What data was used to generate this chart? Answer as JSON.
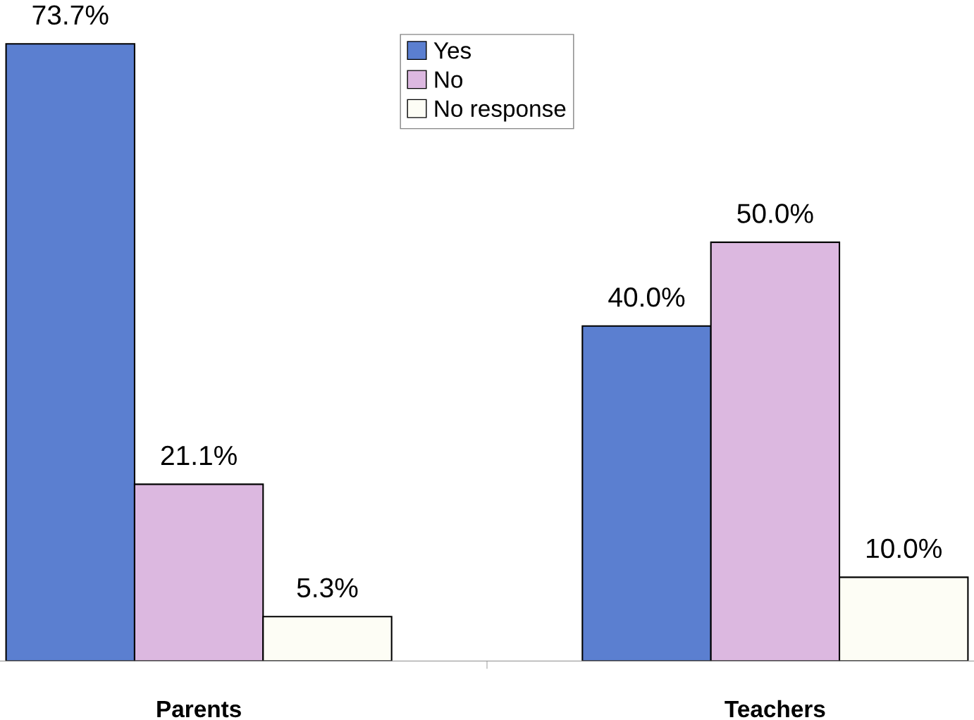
{
  "chart_data": {
    "type": "bar",
    "categories": [
      "Parents",
      "Teachers"
    ],
    "series": [
      {
        "name": "Yes",
        "color": "#5b7fd0",
        "values": [
          73.7,
          40.0
        ],
        "value_labels": [
          "73.7%",
          "40.0%"
        ]
      },
      {
        "name": "No",
        "color": "#dcb8e0",
        "values": [
          21.1,
          50.0
        ],
        "value_labels": [
          "21.1%",
          "50.0%"
        ]
      },
      {
        "name": "No response",
        "color": "#fdfdf5",
        "values": [
          5.3,
          10.0
        ],
        "value_labels": [
          "5.3%",
          "10.0%"
        ]
      }
    ],
    "legend": "top",
    "grid": false,
    "tick_labels": "x"
  }
}
